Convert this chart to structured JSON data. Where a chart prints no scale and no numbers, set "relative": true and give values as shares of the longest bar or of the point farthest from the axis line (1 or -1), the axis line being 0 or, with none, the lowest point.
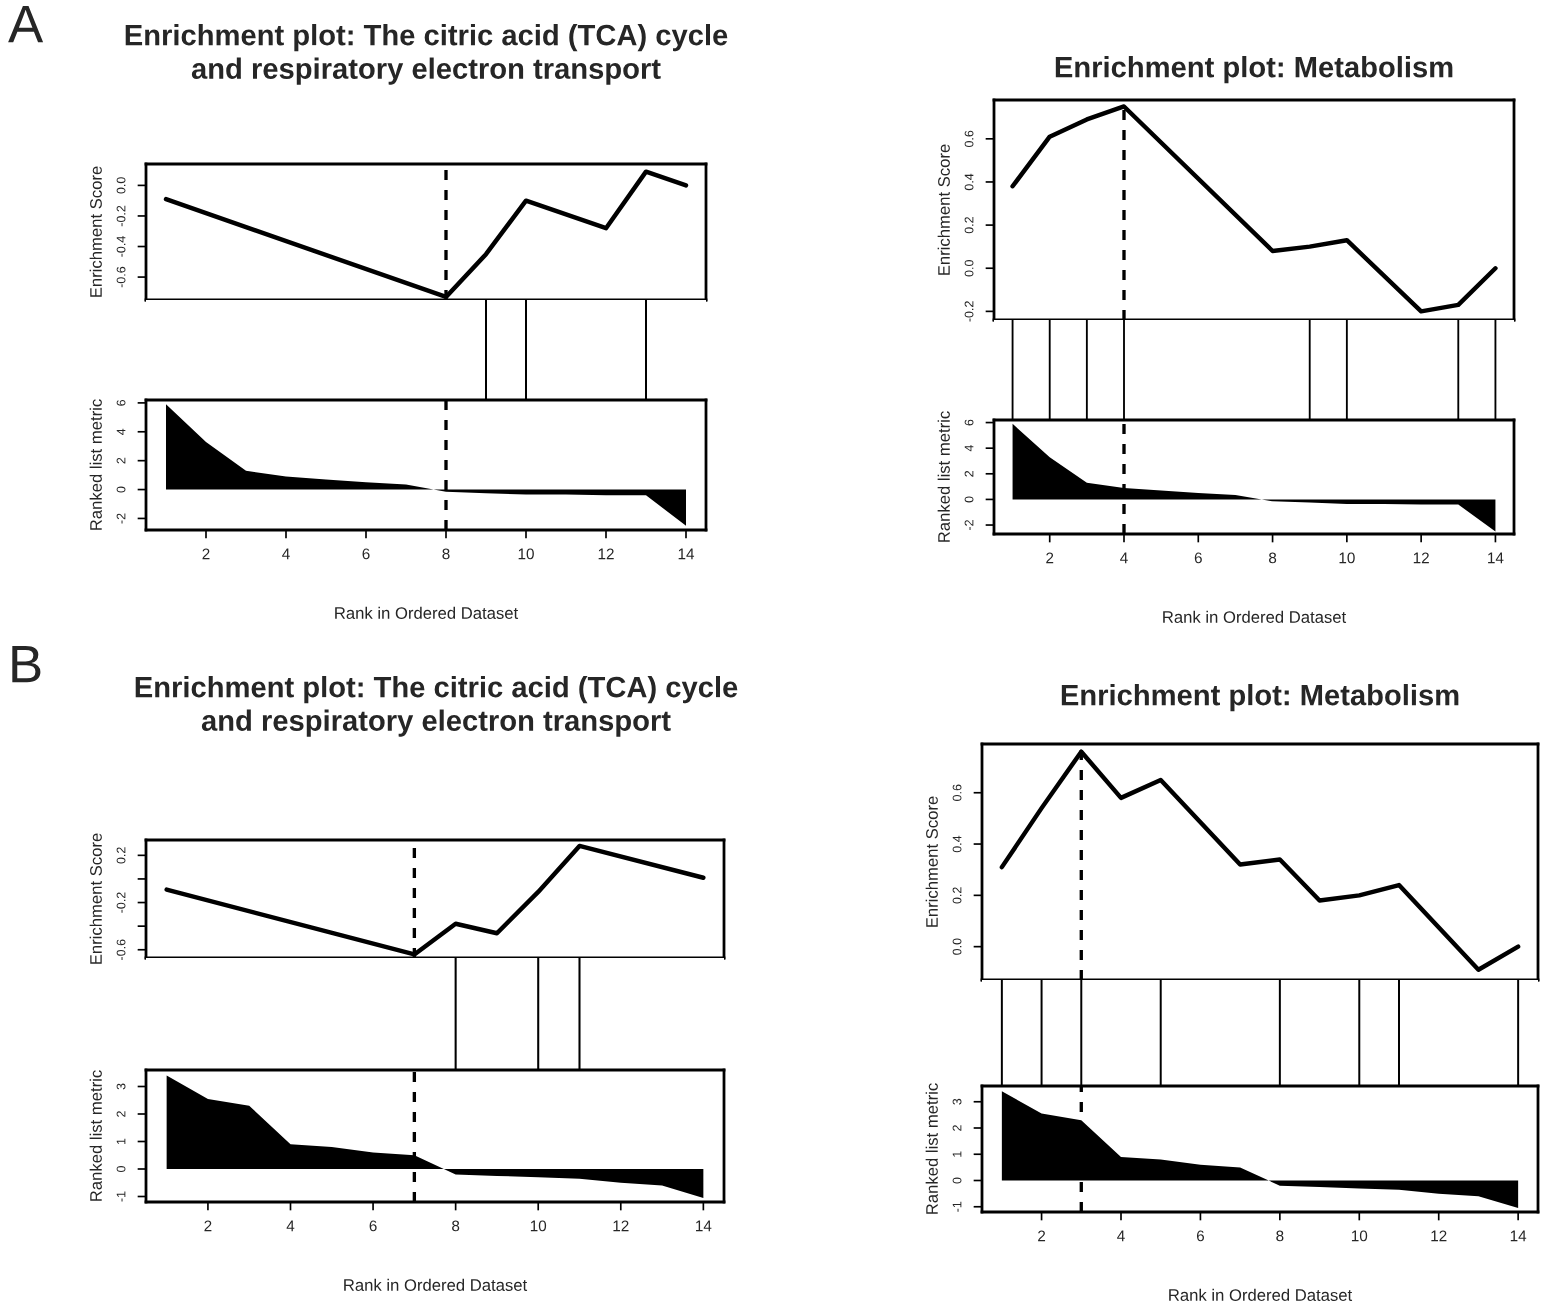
{
  "chart_data": [
    {
      "type": "line",
      "title": "Enrichment plot: The citric acid (TCA) cycle and respiratory electron transport",
      "ylabel": "Enrichment Score",
      "annotations": [
        "A"
      ],
      "x": [
        1,
        8,
        9,
        10,
        12,
        13,
        14
      ],
      "values": [
        -0.09,
        -0.73,
        -0.45,
        -0.1,
        -0.28,
        0.09,
        0.0
      ],
      "color": "#000000",
      "xlim": [
        0.5,
        14.5
      ],
      "ylim": [
        -0.75,
        0.14
      ],
      "yticks": [
        {
          "value": -0.6,
          "label": "-0.6"
        },
        {
          "value": -0.4,
          "label": "-0.4"
        },
        {
          "value": -0.2,
          "label": "-0.2"
        },
        {
          "value": 0.0,
          "label": "0.0"
        }
      ],
      "tick_labels": "y",
      "ref_lines": [
        {
          "axis": "x",
          "value": 8,
          "line_style": "dashed"
        }
      ]
    },
    {
      "type": "bar",
      "relative": true,
      "x": [
        9,
        10,
        13
      ],
      "values": [
        1,
        1,
        1
      ],
      "color": "#000000",
      "xlim": [
        0.5,
        14.5
      ],
      "tick_labels": false
    },
    {
      "type": "area",
      "xlabel": "Rank in Ordered Dataset",
      "ylabel": "Ranked list metric",
      "x": [
        1,
        2,
        3,
        4,
        5,
        6,
        7,
        8,
        9,
        10,
        11,
        12,
        13,
        14
      ],
      "values": [
        5.9,
        3.3,
        1.3,
        0.9,
        0.7,
        0.5,
        0.35,
        -0.15,
        -0.25,
        -0.35,
        -0.35,
        -0.4,
        -0.4,
        -2.5
      ],
      "color": "#000000",
      "xlim": [
        0.5,
        14.5
      ],
      "xticks": [
        2,
        4,
        6,
        8,
        10,
        12,
        14
      ],
      "ylim": [
        -2.8,
        6.2
      ],
      "yticks": [
        -2,
        0,
        2,
        4,
        6
      ],
      "ref_lines": [
        {
          "axis": "x",
          "value": 8,
          "line_style": "dashed"
        }
      ]
    },
    {
      "type": "line",
      "title": "Enrichment plot: Metabolism",
      "ylabel": "Enrichment Score",
      "x": [
        1,
        2,
        3,
        4,
        8,
        9,
        10,
        12,
        13,
        14
      ],
      "values": [
        0.38,
        0.61,
        0.69,
        0.75,
        0.08,
        0.1,
        0.13,
        -0.2,
        -0.17,
        0.0
      ],
      "color": "#000000",
      "xlim": [
        0.5,
        14.5
      ],
      "ylim": [
        -0.24,
        0.78
      ],
      "yticks": [
        {
          "value": -0.2,
          "label": "-0.2"
        },
        {
          "value": 0.0,
          "label": "0.0"
        },
        {
          "value": 0.2,
          "label": "0.2"
        },
        {
          "value": 0.4,
          "label": "0.4"
        },
        {
          "value": 0.6,
          "label": "0.6"
        }
      ],
      "tick_labels": "y",
      "ref_lines": [
        {
          "axis": "x",
          "value": 4,
          "line_style": "dashed"
        }
      ]
    },
    {
      "type": "bar",
      "relative": true,
      "x": [
        1,
        2,
        3,
        4,
        9,
        10,
        13,
        14
      ],
      "values": [
        1,
        1,
        1,
        1,
        1,
        1,
        1,
        1
      ],
      "color": "#000000",
      "xlim": [
        0.5,
        14.5
      ],
      "tick_labels": false
    },
    {
      "type": "area",
      "xlabel": "Rank in Ordered Dataset",
      "ylabel": "Ranked list metric",
      "x": [
        1,
        2,
        3,
        4,
        5,
        6,
        7,
        8,
        9,
        10,
        11,
        12,
        13,
        14
      ],
      "values": [
        5.9,
        3.3,
        1.3,
        0.9,
        0.7,
        0.5,
        0.35,
        -0.15,
        -0.25,
        -0.35,
        -0.35,
        -0.4,
        -0.4,
        -2.5
      ],
      "color": "#000000",
      "xlim": [
        0.5,
        14.5
      ],
      "xticks": [
        2,
        4,
        6,
        8,
        10,
        12,
        14
      ],
      "ylim": [
        -2.7,
        6.2
      ],
      "yticks": [
        -2,
        0,
        2,
        4,
        6
      ],
      "ref_lines": [
        {
          "axis": "x",
          "value": 4,
          "line_style": "dashed"
        }
      ]
    },
    {
      "type": "line",
      "title": "Enrichment plot: The citric acid (TCA) cycle and respiratory electron transport",
      "ylabel": "Enrichment Score",
      "annotations": [
        "B"
      ],
      "x": [
        1,
        7,
        8,
        9,
        10,
        11,
        14
      ],
      "values": [
        -0.09,
        -0.64,
        -0.38,
        -0.46,
        -0.11,
        0.28,
        0.01
      ],
      "color": "#000000",
      "xlim": [
        0.5,
        14.5
      ],
      "ylim": [
        -0.67,
        0.33
      ],
      "yticks": [
        {
          "value": -0.6,
          "label": "-0.6"
        },
        {
          "value": -0.4,
          "label": null
        },
        {
          "value": -0.2,
          "label": "-0.2"
        },
        {
          "value": 0.0,
          "label": null
        },
        {
          "value": 0.2,
          "label": "0.2"
        }
      ],
      "tick_labels": "y",
      "ref_lines": [
        {
          "axis": "x",
          "value": 7,
          "line_style": "dashed"
        }
      ]
    },
    {
      "type": "bar",
      "relative": true,
      "x": [
        8,
        10,
        11
      ],
      "values": [
        1,
        1,
        1
      ],
      "color": "#000000",
      "xlim": [
        0.5,
        14.5
      ],
      "tick_labels": false
    },
    {
      "type": "area",
      "xlabel": "Rank in Ordered Dataset",
      "ylabel": "Ranked list metric",
      "x": [
        1,
        2,
        3,
        4,
        5,
        6,
        7,
        8,
        9,
        10,
        11,
        12,
        13,
        14
      ],
      "values": [
        3.4,
        2.55,
        2.3,
        0.9,
        0.8,
        0.6,
        0.5,
        -0.2,
        -0.25,
        -0.3,
        -0.35,
        -0.5,
        -0.6,
        -1.05
      ],
      "color": "#000000",
      "xlim": [
        0.5,
        14.5
      ],
      "xticks": [
        2,
        4,
        6,
        8,
        10,
        12,
        14
      ],
      "ylim": [
        -1.2,
        3.6
      ],
      "yticks": [
        -1,
        0,
        1,
        2,
        3
      ],
      "ref_lines": [
        {
          "axis": "x",
          "value": 7,
          "line_style": "dashed"
        }
      ]
    },
    {
      "type": "line",
      "title": "Enrichment plot: Metabolism",
      "ylabel": "Enrichment Score",
      "x": [
        1,
        2,
        3,
        4,
        5,
        7,
        8,
        9,
        10,
        11,
        13,
        14
      ],
      "values": [
        0.31,
        0.54,
        0.76,
        0.58,
        0.65,
        0.32,
        0.34,
        0.18,
        0.2,
        0.24,
        -0.09,
        0.0
      ],
      "color": "#000000",
      "xlim": [
        0.5,
        14.5
      ],
      "ylim": [
        -0.13,
        0.79
      ],
      "yticks": [
        {
          "value": 0.0,
          "label": "0.0"
        },
        {
          "value": 0.2,
          "label": "0.2"
        },
        {
          "value": 0.4,
          "label": "0.4"
        },
        {
          "value": 0.6,
          "label": "0.6"
        }
      ],
      "tick_labels": "y",
      "ref_lines": [
        {
          "axis": "x",
          "value": 3,
          "line_style": "dashed"
        }
      ]
    },
    {
      "type": "bar",
      "relative": true,
      "x": [
        1,
        2,
        3,
        5,
        8,
        10,
        11,
        14
      ],
      "values": [
        1,
        1,
        1,
        1,
        1,
        1,
        1,
        1
      ],
      "color": "#000000",
      "xlim": [
        0.5,
        14.5
      ],
      "tick_labels": false
    },
    {
      "type": "area",
      "xlabel": "Rank in Ordered Dataset",
      "ylabel": "Ranked list metric",
      "x": [
        1,
        2,
        3,
        4,
        5,
        6,
        7,
        8,
        9,
        10,
        11,
        12,
        13,
        14
      ],
      "values": [
        3.4,
        2.55,
        2.3,
        0.9,
        0.8,
        0.6,
        0.5,
        -0.2,
        -0.25,
        -0.3,
        -0.35,
        -0.5,
        -0.6,
        -1.05
      ],
      "color": "#000000",
      "xlim": [
        0.5,
        14.5
      ],
      "xticks": [
        2,
        4,
        6,
        8,
        10,
        12,
        14
      ],
      "ylim": [
        -1.2,
        3.6
      ],
      "yticks": [
        -1,
        0,
        1,
        2,
        3
      ],
      "ref_lines": [
        {
          "axis": "x",
          "value": 3,
          "line_style": "dashed"
        }
      ]
    }
  ]
}
